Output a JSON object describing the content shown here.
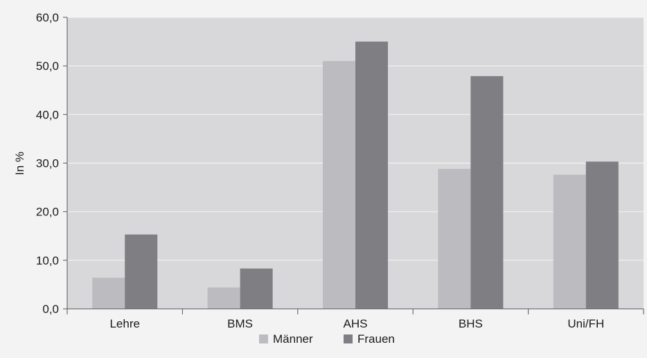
{
  "chart_data": {
    "type": "bar",
    "title": "",
    "xlabel": "",
    "ylabel": "In %",
    "categories": [
      "Lehre",
      "BMS",
      "AHS",
      "BHS",
      "Uni/FH"
    ],
    "series": [
      {
        "name": "Männer",
        "values": [
          6.4,
          4.4,
          51.0,
          28.8,
          27.6
        ],
        "color": "#bcbcc0"
      },
      {
        "name": "Frauen",
        "values": [
          15.3,
          8.3,
          55.0,
          47.9,
          30.3
        ],
        "color": "#7f7f83"
      }
    ],
    "ylim": [
      0,
      60
    ],
    "yticks": [
      "0,0",
      "10,0",
      "20,0",
      "30,0",
      "40,0",
      "50,0",
      "60,0"
    ],
    "grid": true,
    "legend_position": "bottom-center",
    "colors": {
      "page_background": "#f3f3f3",
      "plot_background": "#d8d8da",
      "gridline": "#f2f2f2",
      "axis": "#555555"
    }
  }
}
